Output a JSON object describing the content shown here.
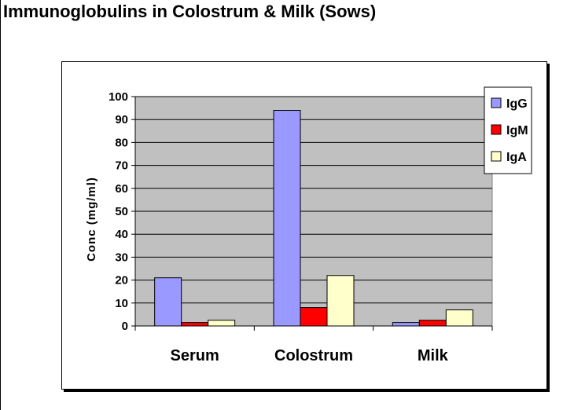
{
  "page": {
    "title": "Immunoglobulins in Colostrum & Milk (Sows)"
  },
  "chart_data": {
    "type": "bar",
    "title": "",
    "xlabel": "",
    "ylabel": "Conc (mg/ml)",
    "ylim": [
      0,
      100
    ],
    "yticks": [
      0,
      10,
      20,
      30,
      40,
      50,
      60,
      70,
      80,
      90,
      100
    ],
    "categories": [
      "Serum",
      "Colostrum",
      "Milk"
    ],
    "series": [
      {
        "name": "IgG",
        "color": "#9999ff",
        "values": [
          21,
          94,
          1.5
        ]
      },
      {
        "name": "IgM",
        "color": "#ff0000",
        "values": [
          1.5,
          8,
          2.5
        ]
      },
      {
        "name": "IgA",
        "color": "#ffffcc",
        "values": [
          2.5,
          22,
          7
        ]
      }
    ],
    "grid": true,
    "plot_background": "#c0c0c0",
    "legend_position": "top-right"
  }
}
